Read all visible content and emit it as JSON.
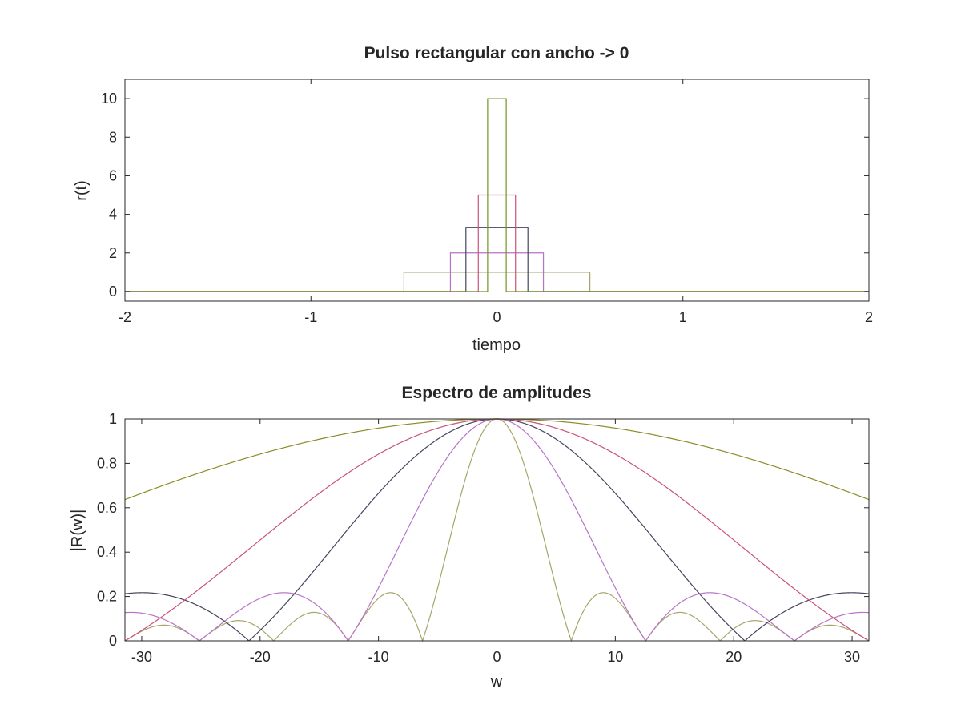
{
  "chart_data": [
    {
      "type": "line",
      "title": "Pulso rectangular con ancho -> 0",
      "xlabel": "tiempo",
      "ylabel": "r(t)",
      "xlim": [
        -2,
        2
      ],
      "ylim": [
        -0.5,
        11
      ],
      "xticks": [
        -2,
        -1,
        0,
        1,
        2
      ],
      "xtick_labels": [
        "-2",
        "-1",
        "0",
        "1",
        "2"
      ],
      "yticks": [
        0,
        2,
        4,
        6,
        8,
        10
      ],
      "ytick_labels": [
        "0",
        "2",
        "4",
        "6",
        "8",
        "10"
      ],
      "grid": false,
      "series": [
        {
          "color": "#a6a66a",
          "values": {
            "width": 1.0,
            "height": 1
          }
        },
        {
          "color": "#b873c8",
          "values": {
            "width": 0.5,
            "height": 2
          }
        },
        {
          "color": "#45445e",
          "values": {
            "width": 0.3333,
            "height": 3.3333
          }
        },
        {
          "color": "#c9537a",
          "values": {
            "width": 0.2,
            "height": 5
          }
        },
        {
          "color": "#6f9622",
          "values": {
            "width": 0.1,
            "height": 10
          }
        }
      ]
    },
    {
      "type": "line",
      "title": "Espectro de amplitudes",
      "xlabel": "w",
      "ylabel": "|R(w)|",
      "xlim": [
        -31.4159,
        31.4159
      ],
      "ylim": [
        0,
        1
      ],
      "xticks": [
        -30,
        -20,
        -10,
        0,
        10,
        20,
        30
      ],
      "xtick_labels": [
        "-30",
        "-20",
        "-10",
        "0",
        "10",
        "20",
        "30"
      ],
      "yticks": [
        0,
        0.2,
        0.4,
        0.6,
        0.8,
        1
      ],
      "ytick_labels": [
        "0",
        "0.2",
        "0.4",
        "0.6",
        "0.8",
        "1"
      ],
      "grid": false,
      "series": [
        {
          "color": "#a6a66a",
          "values": {
            "formula": "|sinc(w*a/2)|",
            "a": 1.0
          }
        },
        {
          "color": "#b873c8",
          "values": {
            "formula": "|sinc(w*a/2)|",
            "a": 0.5
          }
        },
        {
          "color": "#45445e",
          "values": {
            "formula": "|sinc(w*a/2)|",
            "a": 0.3
          }
        },
        {
          "color": "#c9537a",
          "values": {
            "formula": "|sinc(w*a/2)|",
            "a": 0.2
          }
        },
        {
          "color": "#8c8c28",
          "values": {
            "formula": "|sinc(w*a/2)|",
            "a": 0.1
          }
        }
      ]
    }
  ]
}
